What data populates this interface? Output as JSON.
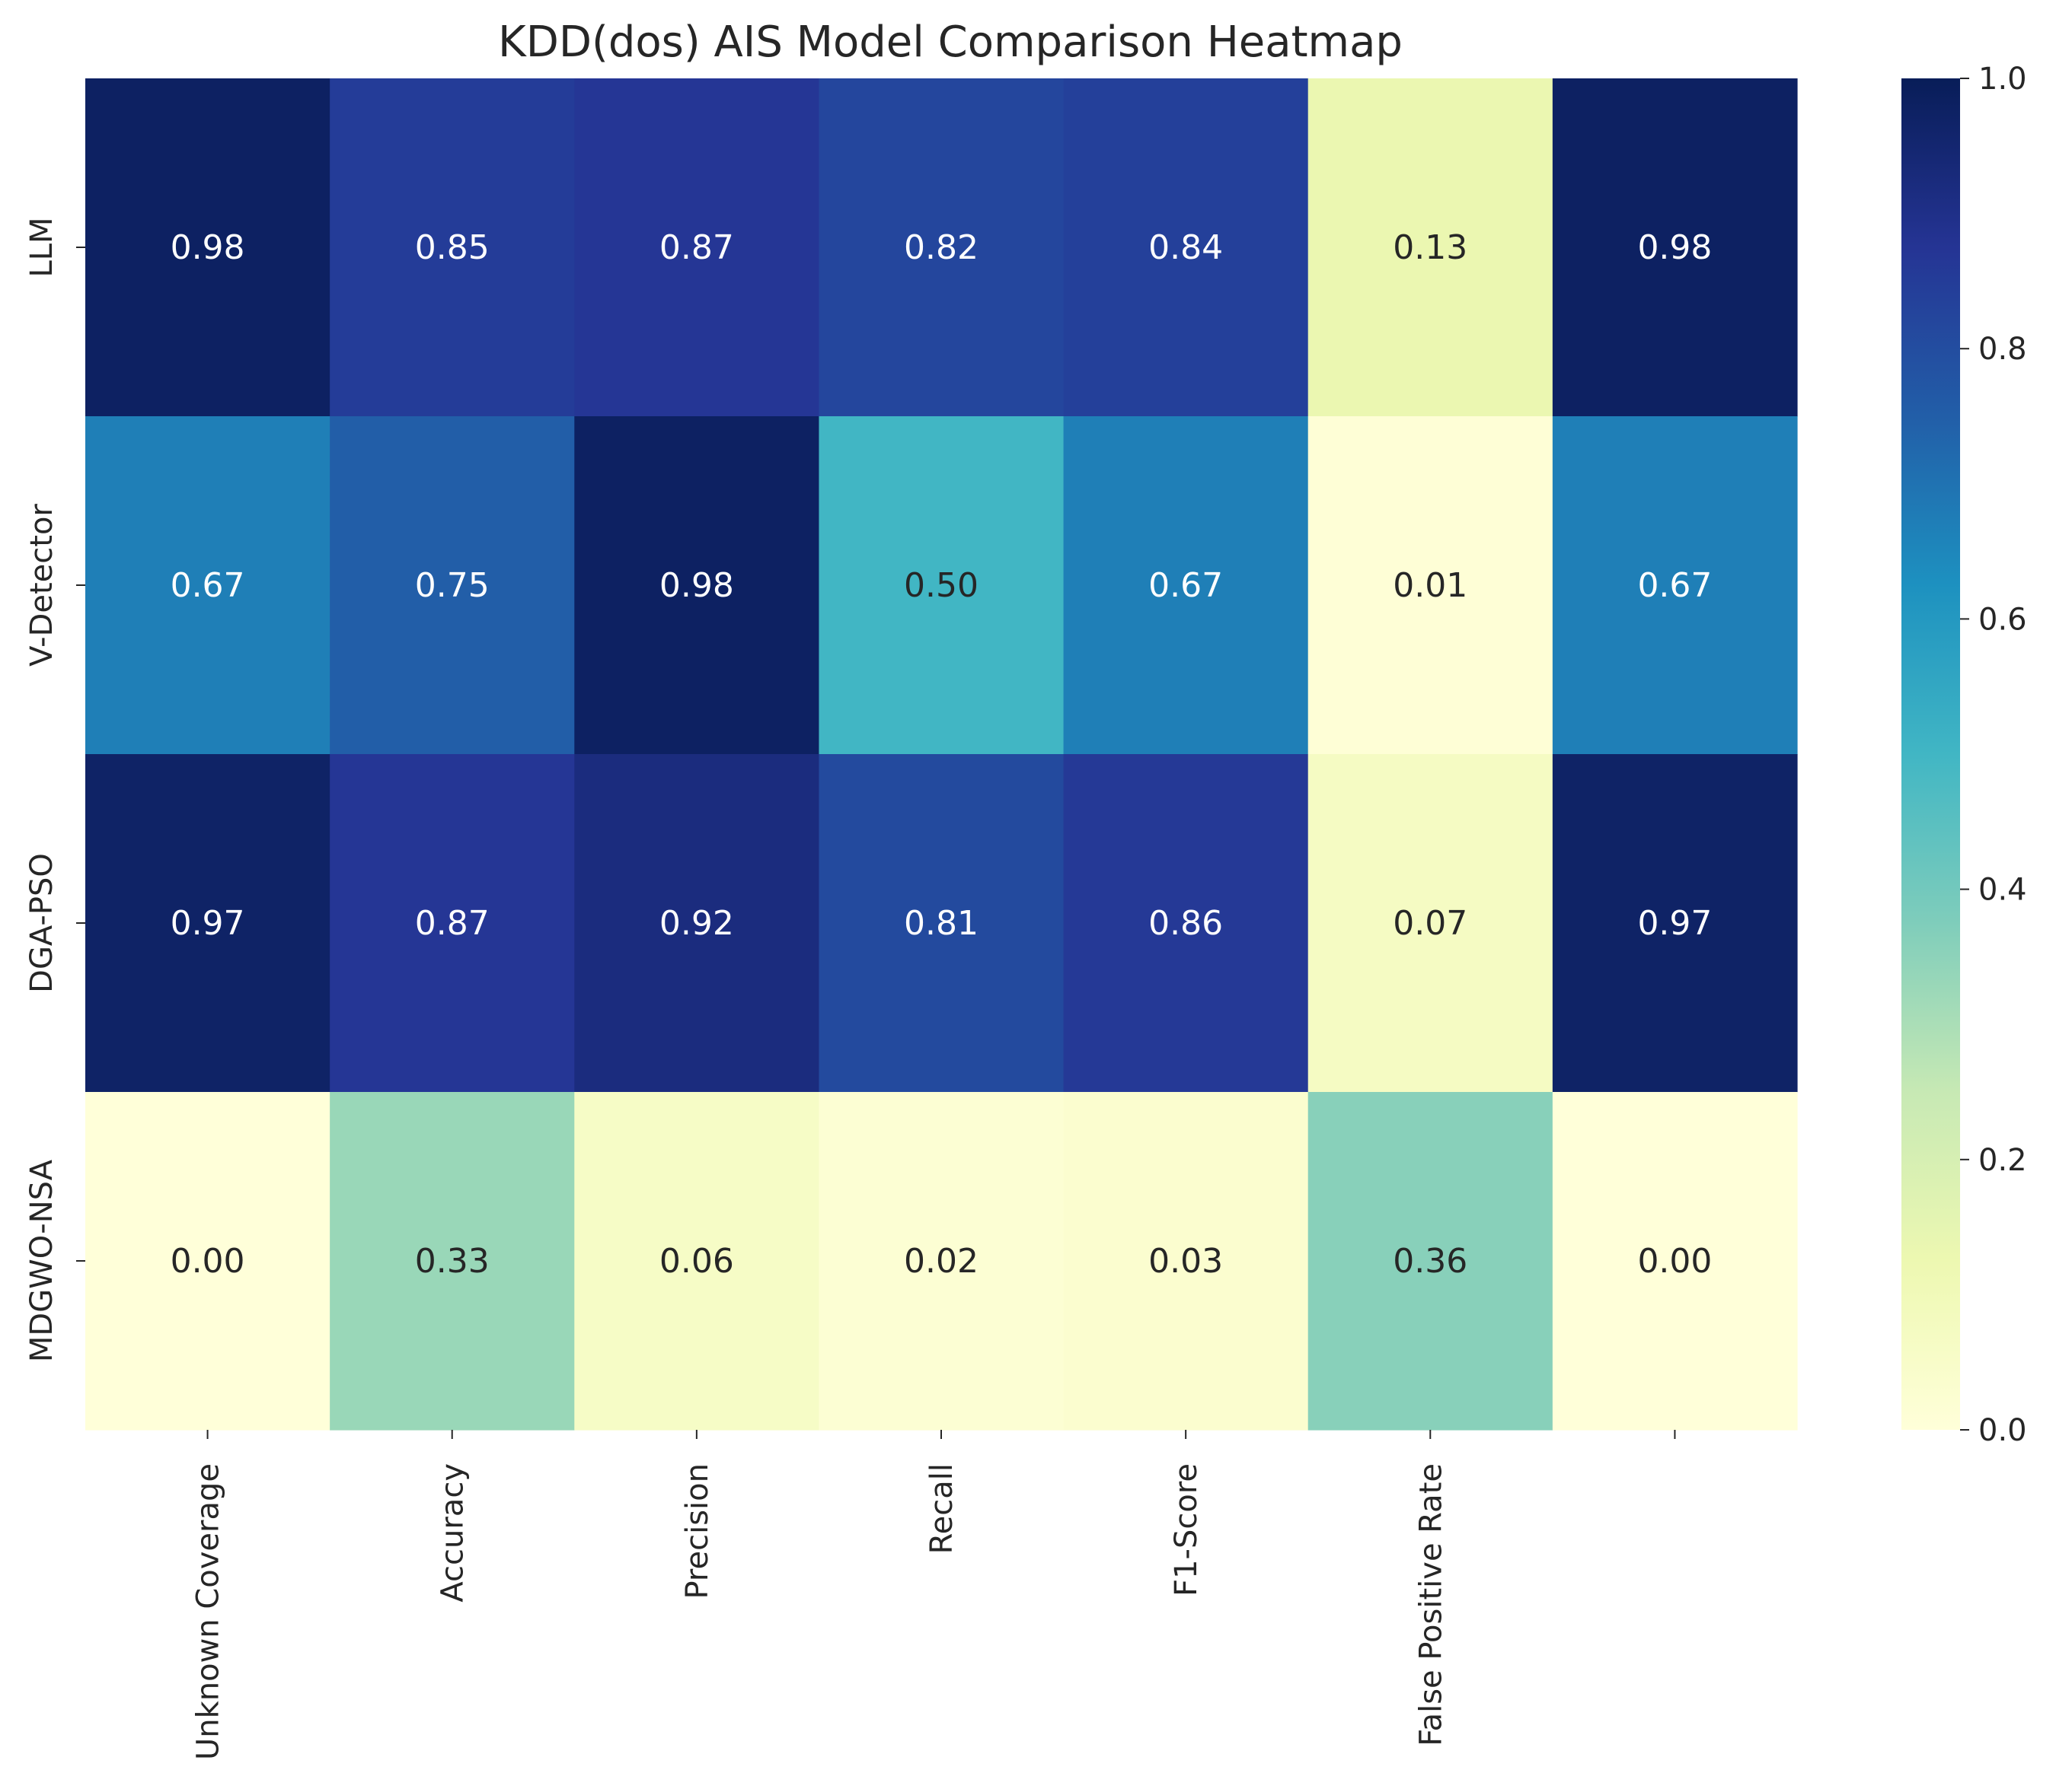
{
  "chart_data": {
    "type": "heatmap",
    "title": "KDD(dos) AIS Model Comparison Heatmap",
    "rows": [
      "LLM",
      "V-Detector",
      "DGA-PSO",
      "MDGWO-NSA"
    ],
    "columns": [
      "Unknown Coverage",
      "Accuracy",
      "Precision",
      "Recall",
      "F1-Score",
      "False Positive Rate",
      ""
    ],
    "values": [
      [
        0.98,
        0.85,
        0.87,
        0.82,
        0.84,
        0.13,
        0.98
      ],
      [
        0.67,
        0.75,
        0.98,
        0.5,
        0.67,
        0.01,
        0.67
      ],
      [
        0.97,
        0.87,
        0.92,
        0.81,
        0.86,
        0.07,
        0.97
      ],
      [
        0.0,
        0.33,
        0.06,
        0.02,
        0.03,
        0.36,
        0.0
      ]
    ],
    "value_format": "0.00",
    "colormap": "YlGnBu",
    "color_scale": [
      {
        "stop": 0.0,
        "color": "#ffffd9"
      },
      {
        "stop": 0.125,
        "color": "#edf8b1"
      },
      {
        "stop": 0.25,
        "color": "#c7e9b4"
      },
      {
        "stop": 0.375,
        "color": "#7fcdbb"
      },
      {
        "stop": 0.5,
        "color": "#41b6c4"
      },
      {
        "stop": 0.625,
        "color": "#1d91c0"
      },
      {
        "stop": 0.75,
        "color": "#225ea8"
      },
      {
        "stop": 0.875,
        "color": "#253494"
      },
      {
        "stop": 1.0,
        "color": "#081d58"
      }
    ],
    "colorbar": {
      "range": [
        0.0,
        1.0
      ],
      "ticks": [
        0.0,
        0.2,
        0.4,
        0.6,
        0.8,
        1.0
      ],
      "tick_labels": [
        "0.0",
        "0.2",
        "0.4",
        "0.6",
        "0.8",
        "1.0"
      ]
    },
    "annotation_colors": {
      "light": "#ffffff",
      "dark": "#262626"
    },
    "text_color": "#262626"
  }
}
